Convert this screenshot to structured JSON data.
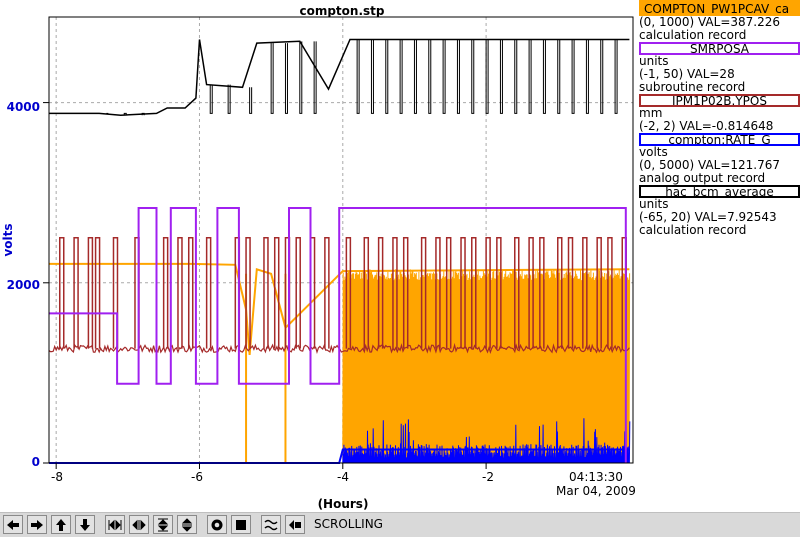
{
  "window": {
    "title": "compton.stp"
  },
  "plot": {
    "ylabel": "volts",
    "xlabel": "(Hours)",
    "y_tick_labels": [
      "4000",
      "2000",
      "0"
    ],
    "x_tick_labels": [
      "-8",
      "-6",
      "-4",
      "-2"
    ],
    "time_label": "04:13:30",
    "date_label": "Mar 04, 2009"
  },
  "legend": [
    {
      "name": "COMPTON_PW1PCAV_ca",
      "color": "#ffa500",
      "range_line": "(0, 1000) VAL=387.226",
      "type_line": "calculation record"
    },
    {
      "name": "SMRPOSA",
      "color": "#a020f0",
      "units_line": "units",
      "range_line": "(-1, 50) VAL=28",
      "type_line": "subroutine record"
    },
    {
      "name": "IPM1P02B.YPOS",
      "color": "#a52a2a",
      "units_line": "mm",
      "range_line": "(-2, 2) VAL=-0.814648",
      "type_line": ""
    },
    {
      "name": "compton:RATE_G",
      "color": "#0000ff",
      "units_line": "volts",
      "range_line": "(0, 5000) VAL=121.767",
      "type_line": "analog output record"
    },
    {
      "name": "hac_bcm_average",
      "color": "#000000",
      "units_line": "units",
      "range_line": "(-65, 20) VAL=7.92543",
      "type_line": "calculation record"
    }
  ],
  "toolbar": {
    "buttons": [
      "arrow-left-icon",
      "arrow-right-icon",
      "arrow-up-icon",
      "arrow-down-icon",
      "zoom-in-x-icon",
      "zoom-out-x-icon",
      "zoom-in-y-icon",
      "zoom-out-y-icon",
      "config-icon",
      "stop-icon",
      "autoscale-icon",
      "print-icon"
    ],
    "mode_label": "SCROLLING"
  },
  "chart_data": {
    "type": "line",
    "title": "compton.stp",
    "xlabel": "(Hours)",
    "ylabel": "volts",
    "xlim": [
      -8.1,
      0.05
    ],
    "ylim": [
      0,
      4950
    ],
    "x_ticks": [
      -8,
      -6,
      -4,
      -2
    ],
    "y_ticks": [
      0,
      2000,
      4000
    ],
    "grid": true,
    "series": [
      {
        "name": "hac_bcm_average",
        "color": "#000000",
        "points": [
          [
            -8.1,
            3880
          ],
          [
            -7.4,
            3880
          ],
          [
            -7.1,
            3860
          ],
          [
            -6.6,
            3880
          ],
          [
            -6.45,
            3940
          ],
          [
            -6.2,
            3940
          ],
          [
            -6.05,
            4050
          ],
          [
            -6.0,
            4700
          ],
          [
            -5.9,
            4200
          ],
          [
            -5.4,
            4170
          ],
          [
            -5.2,
            4660
          ],
          [
            -4.6,
            4680
          ],
          [
            -4.2,
            4150
          ],
          [
            -3.9,
            4700
          ],
          [
            0.0,
            4700
          ]
        ],
        "drops_to": 3880,
        "drop_x": [
          -7.3,
          -7.05,
          -6.8,
          -5.85,
          -5.6,
          -5.3,
          -5.0,
          -4.8,
          -4.6,
          -4.4,
          -3.8,
          -3.6,
          -3.4,
          -3.2,
          -3.0,
          -2.8,
          -2.6,
          -2.4,
          -2.2,
          -2.0,
          -1.8,
          -1.6,
          -1.4,
          -1.2,
          -1.0,
          -0.8,
          -0.6,
          -0.4,
          -0.2
        ]
      },
      {
        "name": "SMRPOSA",
        "color": "#a020f0",
        "points": [
          [
            -8.1,
            1660
          ],
          [
            -7.15,
            1660
          ],
          [
            -7.15,
            880
          ],
          [
            -6.85,
            880
          ],
          [
            -6.85,
            2830
          ],
          [
            -6.6,
            2830
          ],
          [
            -6.6,
            880
          ],
          [
            -6.4,
            880
          ],
          [
            -6.4,
            2830
          ],
          [
            -6.05,
            2830
          ],
          [
            -6.05,
            880
          ],
          [
            -5.75,
            880
          ],
          [
            -5.75,
            2830
          ],
          [
            -5.45,
            2830
          ],
          [
            -5.45,
            880
          ],
          [
            -4.75,
            880
          ],
          [
            -4.75,
            2830
          ],
          [
            -4.45,
            2830
          ],
          [
            -4.45,
            880
          ],
          [
            -4.05,
            880
          ],
          [
            -4.05,
            2830
          ],
          [
            -0.05,
            2830
          ],
          [
            -0.05,
            0
          ]
        ]
      },
      {
        "name": "IPM1P02B.YPOS",
        "color": "#a52a2a",
        "baseline": 1270,
        "spike_to": 2500,
        "spike_x": [
          -7.95,
          -7.75,
          -7.55,
          -7.45,
          -7.2,
          -6.9,
          -6.5,
          -6.3,
          -6.15,
          -5.9,
          -5.5,
          -5.35,
          -5.1,
          -4.95,
          -4.8,
          -4.65,
          -4.45,
          -4.25,
          -3.95,
          -3.7,
          -3.5,
          -3.3,
          -3.15,
          -2.9,
          -2.7,
          -2.55,
          -2.35,
          -2.2,
          -2.0,
          -1.85,
          -1.6,
          -1.4,
          -1.25,
          -1.0,
          -0.85,
          -0.65,
          -0.45,
          -0.3,
          -0.1
        ]
      },
      {
        "name": "COMPTON_PW1PCAV_ca",
        "color": "#ffa500",
        "points": [
          [
            -8.1,
            2210
          ],
          [
            -6.1,
            2210
          ],
          [
            -5.5,
            2200
          ],
          [
            -5.35,
            1700
          ],
          [
            -5.3,
            1200
          ],
          [
            -5.2,
            2150
          ],
          [
            -5.0,
            2100
          ],
          [
            -4.8,
            1500
          ],
          [
            -4.0,
            2130
          ],
          [
            0.0,
            2150
          ]
        ],
        "dips_to_zero_x": [
          -5.35,
          -4.8
        ],
        "noise_band": [
          -4.0,
          0.0,
          0,
          2150
        ]
      },
      {
        "name": "compton:RATE_G",
        "color": "#0000ff",
        "points": [
          [
            -8.1,
            0
          ],
          [
            -4.05,
            0
          ],
          [
            -4.0,
            150
          ],
          [
            0.0,
            150
          ]
        ],
        "noise_band": [
          -4.0,
          0.0,
          0,
          500
        ]
      }
    ]
  }
}
